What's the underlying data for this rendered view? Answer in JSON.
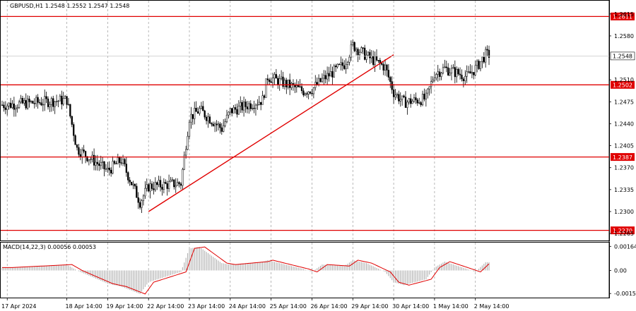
{
  "chart_data": [
    {
      "type": "candlestick",
      "title": "GBPUSD,H1  1.2548 1.2552 1.2547 1.2548",
      "y_ticks": [
        "1.2615",
        "1.2580",
        "1.2510",
        "1.2475",
        "1.2440",
        "1.2405",
        "1.2370",
        "1.2335",
        "1.2300",
        "1.2265"
      ],
      "ylim": [
        1.2255,
        1.2635
      ],
      "current_price": "1.2548",
      "levels": [
        {
          "label": "1.2611",
          "value": 1.2611
        },
        {
          "label": "1.2502",
          "value": 1.2502
        },
        {
          "label": "1.2387",
          "value": 1.2387
        },
        {
          "label": "1.2270",
          "value": 1.227
        }
      ],
      "trendline": {
        "from": [
          "22 Apr 14:00",
          1.23
        ],
        "to": [
          "30 Apr 14:00",
          1.255
        ]
      },
      "anchors": [
        {
          "x": "17 Apr 2024",
          "y": 1.247
        },
        {
          "x": "18 Apr 14:00",
          "y": 1.2478
        },
        {
          "x": "18 Apr evening",
          "y": 1.24
        },
        {
          "x": "19 Apr 14:00",
          "y": 1.2365
        },
        {
          "x": "19 Apr late",
          "y": 1.2382
        },
        {
          "x": "22 Apr 09:00",
          "y": 1.2315
        },
        {
          "x": "22 Apr 14:00",
          "y": 1.234
        },
        {
          "x": "23 Apr 09:00",
          "y": 1.2345
        },
        {
          "x": "23 Apr 14:00",
          "y": 1.245
        },
        {
          "x": "23 Apr 20:00",
          "y": 1.2462
        },
        {
          "x": "24 Apr 09:00",
          "y": 1.2432
        },
        {
          "x": "24 Apr 14:00",
          "y": 1.246
        },
        {
          "x": "25 Apr 09:00",
          "y": 1.2478
        },
        {
          "x": "25 Apr 12:00",
          "y": 1.2515
        },
        {
          "x": "26 Apr 09:00",
          "y": 1.2492
        },
        {
          "x": "26 Apr 14:00",
          "y": 1.2495
        },
        {
          "x": "26 Apr 20:00",
          "y": 1.251
        },
        {
          "x": "29 Apr 09:00",
          "y": 1.2535
        },
        {
          "x": "29 Apr 14:00",
          "y": 1.2565
        },
        {
          "x": "29 Apr 22:00",
          "y": 1.2548
        },
        {
          "x": "30 Apr 09:00",
          "y": 1.253
        },
        {
          "x": "30 Apr 14:00",
          "y": 1.249
        },
        {
          "x": "30 Apr 20:00",
          "y": 1.2474
        },
        {
          "x": "1 May 09:00",
          "y": 1.248
        },
        {
          "x": "1 May 14:00",
          "y": 1.252
        },
        {
          "x": "1 May 20:00",
          "y": 1.2528
        },
        {
          "x": "2 May 09:00",
          "y": 1.2515
        },
        {
          "x": "2 May 14:00",
          "y": 1.2528
        },
        {
          "x": "2 May 20:00",
          "y": 1.255
        }
      ]
    },
    {
      "type": "histogram",
      "title": "MACD(14,22,3) 0.00056 0.00053",
      "y_ticks": [
        "0.00164",
        "0.00",
        "-0.00157"
      ],
      "ylim": [
        -0.0018,
        0.0018
      ],
      "anchors": [
        {
          "x": "17 Apr 2024",
          "y": 0.0002
        },
        {
          "x": "18 Apr 14:00",
          "y": 0.0004
        },
        {
          "x": "18 Apr evening",
          "y": 0.0
        },
        {
          "x": "19 Apr 14:00",
          "y": -0.0009
        },
        {
          "x": "19 Apr late",
          "y": -0.0011
        },
        {
          "x": "22 Apr 09:00",
          "y": -0.0016
        },
        {
          "x": "22 Apr 14:00",
          "y": -0.0008
        },
        {
          "x": "23 Apr 09:00",
          "y": -0.0001
        },
        {
          "x": "23 Apr 14:00",
          "y": 0.0015
        },
        {
          "x": "23 Apr 20:00",
          "y": 0.0016
        },
        {
          "x": "24 Apr 09:00",
          "y": 0.0005
        },
        {
          "x": "24 Apr 14:00",
          "y": 0.0004
        },
        {
          "x": "25 Apr 09:00",
          "y": 0.0006
        },
        {
          "x": "25 Apr 12:00",
          "y": 0.0007
        },
        {
          "x": "26 Apr 09:00",
          "y": 0.0001
        },
        {
          "x": "26 Apr 14:00",
          "y": -0.0001
        },
        {
          "x": "26 Apr 20:00",
          "y": 0.0004
        },
        {
          "x": "29 Apr 09:00",
          "y": 0.0003
        },
        {
          "x": "29 Apr 14:00",
          "y": 0.0007
        },
        {
          "x": "29 Apr 22:00",
          "y": 0.0005
        },
        {
          "x": "30 Apr 09:00",
          "y": -0.0001
        },
        {
          "x": "30 Apr 14:00",
          "y": -0.0008
        },
        {
          "x": "30 Apr 20:00",
          "y": -0.001
        },
        {
          "x": "1 May 09:00",
          "y": -0.0006
        },
        {
          "x": "1 May 14:00",
          "y": 0.0002
        },
        {
          "x": "1 May 20:00",
          "y": 0.0006
        },
        {
          "x": "2 May 09:00",
          "y": 0.0001
        },
        {
          "x": "2 May 14:00",
          "y": -0.0001
        },
        {
          "x": "2 May 20:00",
          "y": 0.00056
        }
      ],
      "signal_line": true
    }
  ],
  "x_labels": [
    "17 Apr 2024",
    "18 Apr 14:00",
    "19 Apr 14:00",
    "22 Apr 14:00",
    "23 Apr 14:00",
    "24 Apr 14:00",
    "25 Apr 14:00",
    "26 Apr 14:00",
    "29 Apr 14:00",
    "30 Apr 14:00",
    "1 May 14:00",
    "2 May 14:00"
  ],
  "colors": {
    "bull": "#000000",
    "bear": "#000000",
    "level": "#e00000",
    "trend": "#e00000",
    "grid": "#9a9a9a",
    "macd_bar": "#b0b0b0",
    "signal": "#e00000"
  }
}
